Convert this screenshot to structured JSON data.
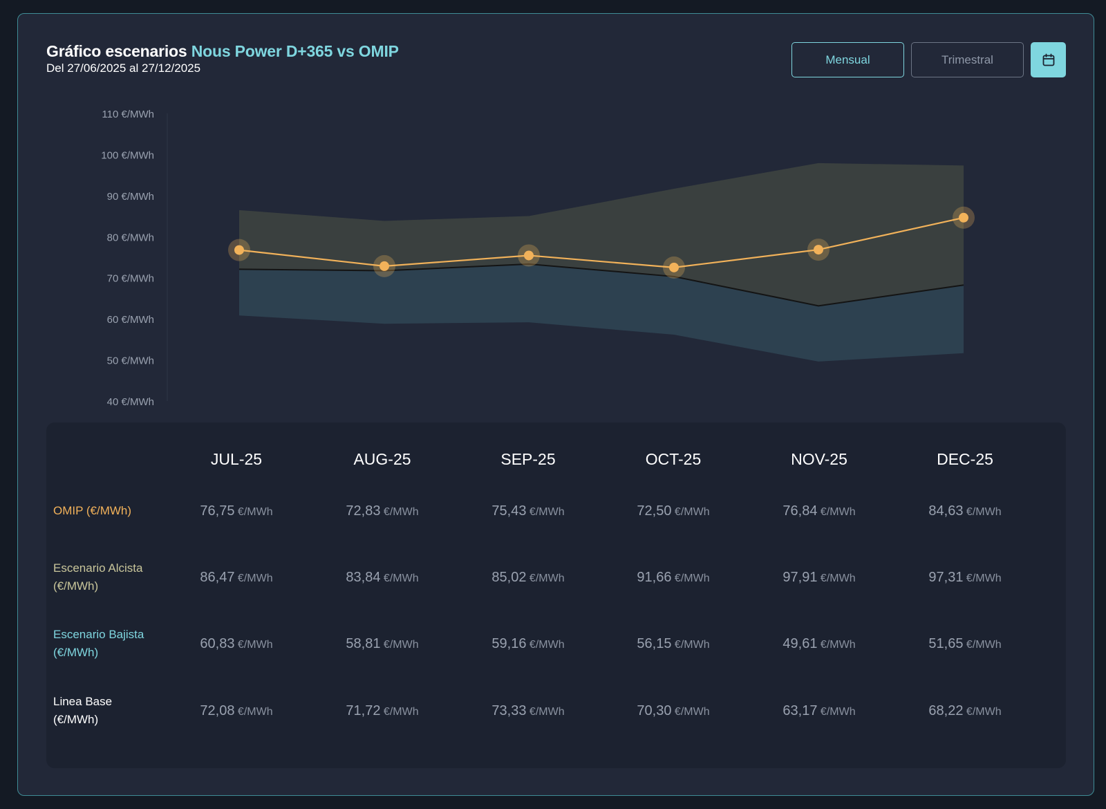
{
  "header": {
    "title_prefix": "Gráfico escenarios",
    "title_accent": "Nous Power D+365 vs OMIP",
    "subtitle": "Del 27/06/2025 al 27/12/2025"
  },
  "controls": {
    "mensual_label": "Mensual",
    "trimestral_label": "Trimestral",
    "calendar_icon": "calendar-icon",
    "active": "Mensual"
  },
  "colors": {
    "accent": "#7fd6df",
    "omip": "#f2b25a",
    "alcista_area": "#3a403f",
    "bajista_area": "#2d4150",
    "base_line": "#141414",
    "card_border": "#3f8d96"
  },
  "chart_data": {
    "type": "area",
    "categories": [
      "JUL-25",
      "AUG-25",
      "SEP-25",
      "OCT-25",
      "NOV-25",
      "DEC-25"
    ],
    "ylim": [
      40,
      110
    ],
    "yticks": [
      "110 €/MWh",
      "100 €/MWh",
      "90 €/MWh",
      "80 €/MWh",
      "70 €/MWh",
      "60 €/MWh",
      "50 €/MWh",
      "40 €/MWh"
    ],
    "ytick_values": [
      110,
      100,
      90,
      80,
      70,
      60,
      50,
      40
    ],
    "grid": false,
    "series": [
      {
        "key": "omip",
        "values": [
          76.75,
          72.83,
          75.43,
          72.5,
          76.84,
          84.63
        ]
      },
      {
        "key": "alcista",
        "values": [
          86.47,
          83.84,
          85.02,
          91.66,
          97.91,
          97.31
        ]
      },
      {
        "key": "bajista",
        "values": [
          60.83,
          58.81,
          59.16,
          56.15,
          49.61,
          51.65
        ]
      },
      {
        "key": "base",
        "values": [
          72.08,
          71.72,
          73.33,
          70.3,
          63.17,
          68.22
        ]
      }
    ]
  },
  "table": {
    "columns": [
      "JUL-25",
      "AUG-25",
      "SEP-25",
      "OCT-25",
      "NOV-25",
      "DEC-25"
    ],
    "unit": "€/MWh",
    "rows": [
      {
        "label_line1": "OMIP (€/MWh)",
        "label_line2": "",
        "color": "#f2b25a",
        "values": [
          "76,75",
          "72,83",
          "75,43",
          "72,50",
          "76,84",
          "84,63"
        ]
      },
      {
        "label_line1": "Escenario Alcista",
        "label_line2": "(€/MWh)",
        "color": "#c9c69b",
        "values": [
          "86,47",
          "83,84",
          "85,02",
          "91,66",
          "97,91",
          "97,31"
        ]
      },
      {
        "label_line1": "Escenario Bajista",
        "label_line2": "(€/MWh)",
        "color": "#7fd6df",
        "values": [
          "60,83",
          "58,81",
          "59,16",
          "56,15",
          "49,61",
          "51,65"
        ]
      },
      {
        "label_line1": "Linea Base",
        "label_line2": "(€/MWh)",
        "color": "#ffffff",
        "values": [
          "72,08",
          "71,72",
          "73,33",
          "70,30",
          "63,17",
          "68,22"
        ]
      }
    ]
  }
}
